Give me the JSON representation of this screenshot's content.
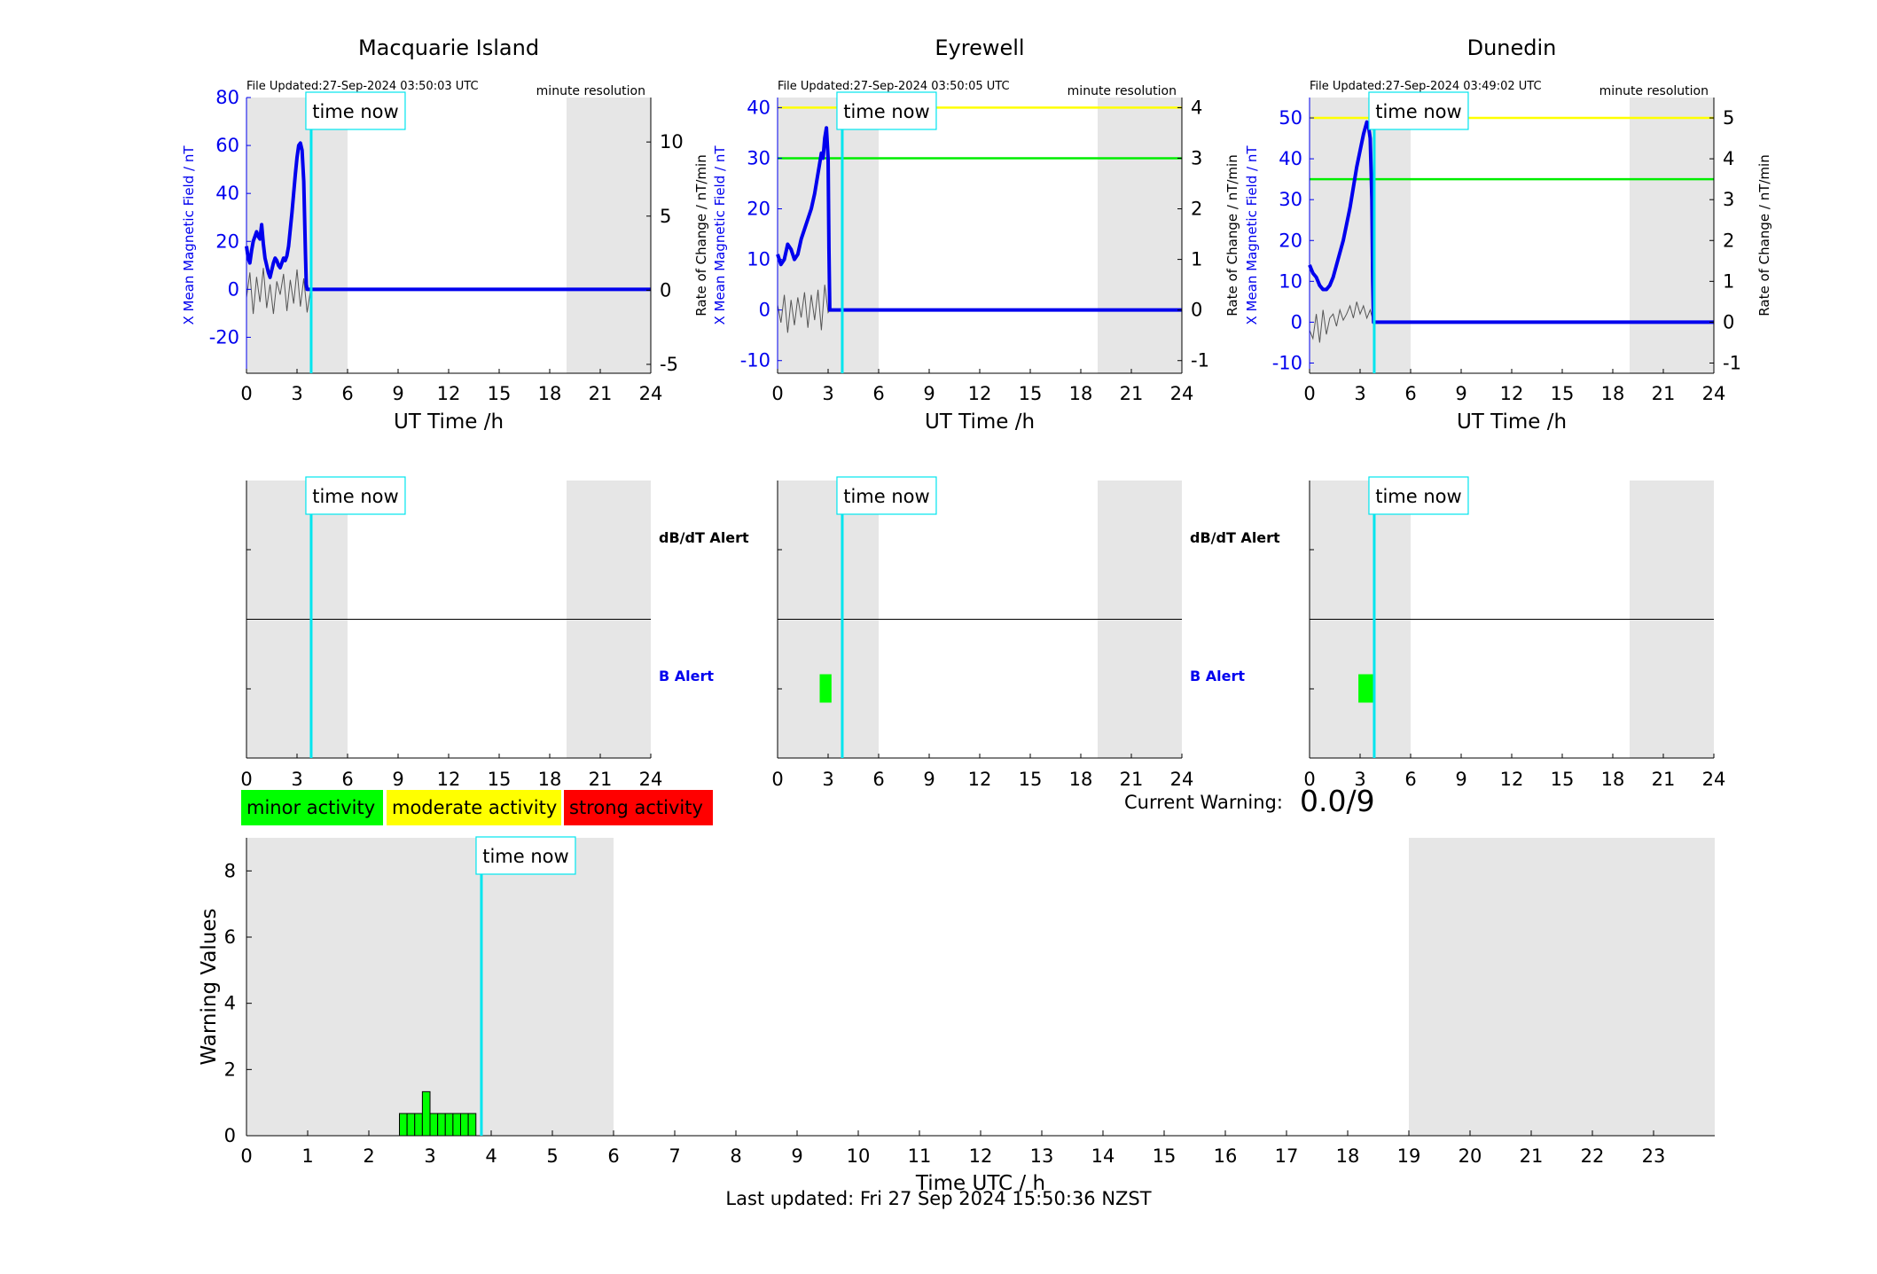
{
  "colors": {
    "shade": "#e6e6e6",
    "mean_field": "#0000ee",
    "rate": "#555555",
    "now_line": "#00e5ee",
    "level_yellow": "#ffff00",
    "level_green": "#00ee00",
    "minor": "#00ff00",
    "moderate": "#ffff00",
    "strong": "#ff0000",
    "b_alert_label": "#0000ee"
  },
  "now_label": "time now",
  "now_hour": 3.84,
  "shaded_ut_hours": [
    [
      0,
      6
    ],
    [
      19,
      24
    ]
  ],
  "legend": [
    {
      "label": "minor activity",
      "color": "#00ff00"
    },
    {
      "label": "moderate activity",
      "color": "#ffff00"
    },
    {
      "label": "strong activity",
      "color": "#ff0000"
    }
  ],
  "current_warning": {
    "label": "Current Warning:",
    "value": "0.0/9"
  },
  "footer": "Last updated: Fri 27 Sep 2024 15:50:36 NZST",
  "alert_labels": {
    "dbdt": "dB/dT Alert",
    "b": "B Alert"
  },
  "chart_data": [
    {
      "type": "line",
      "title": "Macquarie Island",
      "file_updated": "File Updated:27-Sep-2024 03:50:03 UTC",
      "resolution": "minute resolution",
      "xlabel": "UT Time /h",
      "ylabel": "X Mean Magnetic Field / nT",
      "ylabel_right": "Rate of Change / nT/min",
      "xlim": [
        0,
        24
      ],
      "xticks": [
        0,
        3,
        6,
        9,
        12,
        15,
        18,
        21,
        24
      ],
      "ylim": [
        -35,
        80
      ],
      "yticks": [
        -20,
        0,
        20,
        40,
        60,
        80
      ],
      "ylim_right": [
        -5.6,
        13
      ],
      "yticks_right": [
        -5,
        0,
        5,
        10
      ],
      "thresholds": [],
      "series": [
        {
          "x": [
            0,
            0.1,
            0.2,
            0.3,
            0.4,
            0.5,
            0.6,
            0.7,
            0.8,
            0.9,
            1.0,
            1.1,
            1.2,
            1.3,
            1.4,
            1.5,
            1.6,
            1.7,
            1.8,
            1.9,
            2.0,
            2.1,
            2.2,
            2.3,
            2.4,
            2.5,
            2.6,
            2.7,
            2.8,
            2.9,
            3.0,
            3.1,
            3.2,
            3.3,
            3.4,
            3.5,
            3.55,
            3.6,
            3.7,
            3.84,
            24
          ],
          "y": [
            18,
            13,
            11,
            16,
            20,
            22,
            24,
            22,
            21,
            27,
            19,
            13,
            10,
            7,
            5,
            8,
            11,
            13,
            12,
            10,
            9,
            11,
            13,
            12,
            14,
            18,
            25,
            32,
            40,
            48,
            55,
            60,
            61,
            58,
            45,
            15,
            2,
            0,
            0,
            0,
            0
          ]
        }
      ],
      "rate_series": [
        {
          "x": [
            0,
            0.2,
            0.4,
            0.6,
            0.8,
            1.0,
            1.2,
            1.4,
            1.6,
            1.8,
            2.0,
            2.2,
            2.4,
            2.6,
            2.8,
            3.0,
            3.2,
            3.4,
            3.6,
            3.8,
            24
          ],
          "y": [
            -0.5,
            1.2,
            -1.6,
            0.9,
            -0.8,
            1.5,
            -1.2,
            0.4,
            -1.6,
            0.6,
            -0.3,
            1.1,
            -1.4,
            0.7,
            -0.9,
            1.4,
            -1.1,
            0.8,
            -1.5,
            0,
            0
          ]
        }
      ],
      "alerts": {
        "dbdt": [],
        "b": []
      }
    },
    {
      "type": "line",
      "title": "Eyrewell",
      "file_updated": "File Updated:27-Sep-2024 03:50:05 UTC",
      "resolution": "minute resolution",
      "xlabel": "UT Time /h",
      "ylabel": "X Mean Magnetic Field / nT",
      "ylabel_right": "Rate of Change / nT/min",
      "xlim": [
        0,
        24
      ],
      "xticks": [
        0,
        3,
        6,
        9,
        12,
        15,
        18,
        21,
        24
      ],
      "ylim": [
        -12.5,
        42
      ],
      "yticks": [
        -10,
        0,
        10,
        20,
        30,
        40
      ],
      "ylim_right": [
        -1.25,
        4.2
      ],
      "yticks_right": [
        -1,
        0,
        1,
        2,
        3,
        4
      ],
      "thresholds": [
        {
          "value": 40,
          "color": "#ffff00"
        },
        {
          "value": 30,
          "color": "#00ee00"
        }
      ],
      "series": [
        {
          "x": [
            0,
            0.2,
            0.4,
            0.6,
            0.8,
            1.0,
            1.2,
            1.4,
            1.6,
            1.8,
            2.0,
            2.2,
            2.4,
            2.5,
            2.6,
            2.7,
            2.8,
            2.9,
            3.0,
            3.05,
            3.1,
            3.84,
            24
          ],
          "y": [
            11,
            9,
            10,
            13,
            12,
            10,
            11,
            14,
            16,
            18,
            20,
            23,
            27,
            29,
            31,
            30,
            34,
            36,
            30,
            12,
            0,
            0,
            0
          ]
        }
      ],
      "rate_series": [
        {
          "x": [
            0,
            0.2,
            0.4,
            0.6,
            0.8,
            1.0,
            1.2,
            1.4,
            1.6,
            1.8,
            2.0,
            2.2,
            2.4,
            2.6,
            2.8,
            3.0,
            3.1,
            24
          ],
          "y": [
            0.1,
            -0.25,
            0.3,
            -0.45,
            0.2,
            -0.3,
            0.25,
            -0.15,
            0.35,
            -0.35,
            0.3,
            -0.2,
            0.4,
            -0.4,
            0.5,
            -0.05,
            0,
            0
          ]
        }
      ],
      "alerts": {
        "dbdt": [],
        "b": [
          {
            "start": 2.5,
            "end": 3.2,
            "color": "#00ff00"
          }
        ]
      }
    },
    {
      "type": "line",
      "title": "Dunedin",
      "file_updated": "File Updated:27-Sep-2024 03:49:02 UTC",
      "resolution": "minute resolution",
      "xlabel": "UT Time /h",
      "ylabel": "X Mean Magnetic Field / nT",
      "ylabel_right": "Rate of Change / nT/min",
      "xlim": [
        0,
        24
      ],
      "xticks": [
        0,
        3,
        6,
        9,
        12,
        15,
        18,
        21,
        24
      ],
      "ylim": [
        -12.5,
        55
      ],
      "yticks": [
        -10,
        0,
        10,
        20,
        30,
        40,
        50
      ],
      "ylim_right": [
        -1.25,
        5.5
      ],
      "yticks_right": [
        -1,
        0,
        1,
        2,
        3,
        4,
        5
      ],
      "thresholds": [
        {
          "value": 50,
          "color": "#ffff00"
        },
        {
          "value": 35,
          "color": "#00ee00"
        }
      ],
      "series": [
        {
          "x": [
            0,
            0.2,
            0.4,
            0.6,
            0.8,
            1.0,
            1.2,
            1.4,
            1.6,
            1.8,
            2.0,
            2.2,
            2.4,
            2.6,
            2.8,
            3.0,
            3.2,
            3.4,
            3.5,
            3.6,
            3.7,
            3.75,
            3.8,
            3.84,
            24
          ],
          "y": [
            14,
            12,
            11,
            9,
            8,
            8,
            9,
            11,
            14,
            17,
            20,
            24,
            28,
            33,
            38,
            42,
            46,
            49,
            48,
            45,
            30,
            10,
            0,
            0,
            0
          ]
        }
      ],
      "rate_series": [
        {
          "x": [
            0,
            0.2,
            0.4,
            0.6,
            0.8,
            1.0,
            1.2,
            1.4,
            1.6,
            1.8,
            2.0,
            2.2,
            2.4,
            2.6,
            2.8,
            3.0,
            3.2,
            3.4,
            3.6,
            3.8,
            24
          ],
          "y": [
            -0.2,
            -0.4,
            0.2,
            -0.5,
            0.3,
            -0.3,
            0.1,
            0.2,
            -0.1,
            0.3,
            0.05,
            0.2,
            0.4,
            0.1,
            0.5,
            0.2,
            0.4,
            0.1,
            0.3,
            0,
            0
          ]
        }
      ],
      "alerts": {
        "dbdt": [],
        "b": [
          {
            "start": 2.9,
            "end": 3.9,
            "color": "#00ff00"
          }
        ]
      }
    },
    {
      "type": "bar",
      "xlabel": "Time UTC / h",
      "ylabel": "Warning Values",
      "xlim": [
        0,
        24
      ],
      "xticks": [
        0,
        1,
        2,
        3,
        4,
        5,
        6,
        7,
        8,
        9,
        10,
        11,
        12,
        13,
        14,
        15,
        16,
        17,
        18,
        19,
        20,
        21,
        22,
        23
      ],
      "ylim": [
        0,
        9
      ],
      "yticks": [
        0,
        2,
        4,
        6,
        8
      ],
      "bar_width_h": 0.125,
      "bars": {
        "x": [
          2.5,
          2.625,
          2.75,
          2.875,
          3.0,
          3.125,
          3.25,
          3.375,
          3.5,
          3.625
        ],
        "values": [
          0.67,
          0.67,
          0.67,
          1.33,
          0.67,
          0.67,
          0.67,
          0.67,
          0.67,
          0.67
        ],
        "color": "#00ff00"
      }
    }
  ]
}
